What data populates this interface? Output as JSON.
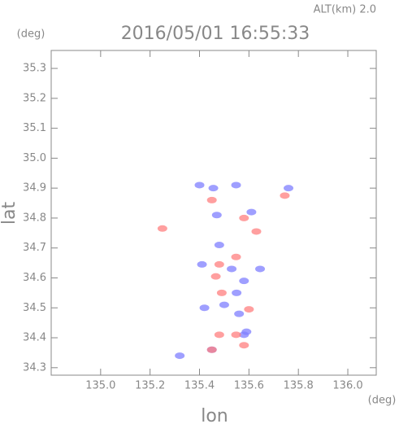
{
  "chart_data": {
    "type": "scatter",
    "title": "2016/05/01 16:55:33",
    "annotation": "ALT(km)  2.0",
    "y_unit": "(deg)",
    "x_unit": "(deg)",
    "x_label": "lon",
    "y_label": "lat",
    "xlim": [
      134.8,
      136.115
    ],
    "ylim": [
      34.275,
      35.36
    ],
    "xticks": [
      {
        "value": 135,
        "label": "135.0"
      },
      135.2,
      135.4,
      135.6,
      135.8,
      {
        "value": 136,
        "label": "136.0"
      }
    ],
    "yticks": [
      34.3,
      34.4,
      34.5,
      34.6,
      34.7,
      34.8,
      34.9,
      {
        "value": 35,
        "label": "35.0"
      },
      35.1,
      35.2,
      35.3
    ],
    "series": [
      {
        "color": "#7f7fff",
        "x": [
          135.4,
          135.456,
          135.548,
          135.41,
          135.48,
          135.53,
          135.58,
          135.55,
          135.42,
          135.5,
          135.58,
          135.59,
          135.56,
          135.45,
          135.32,
          135.76,
          135.61,
          135.645,
          135.47
        ],
        "y": [
          34.91,
          34.9,
          34.91,
          34.645,
          34.71,
          34.63,
          34.59,
          34.55,
          34.5,
          34.51,
          34.41,
          34.42,
          34.48,
          34.36,
          34.34,
          34.9,
          34.82,
          34.63,
          34.81
        ]
      },
      {
        "color": "#ff7f7f",
        "x": [
          135.745,
          135.58,
          135.48,
          135.466,
          135.548,
          135.49,
          135.48,
          135.548,
          135.45,
          135.58,
          135.6,
          135.25,
          135.45,
          135.63
        ],
        "y": [
          34.875,
          34.8,
          34.645,
          34.605,
          34.67,
          34.55,
          34.41,
          34.41,
          34.36,
          34.375,
          34.495,
          34.765,
          34.86,
          34.755
        ]
      }
    ]
  }
}
